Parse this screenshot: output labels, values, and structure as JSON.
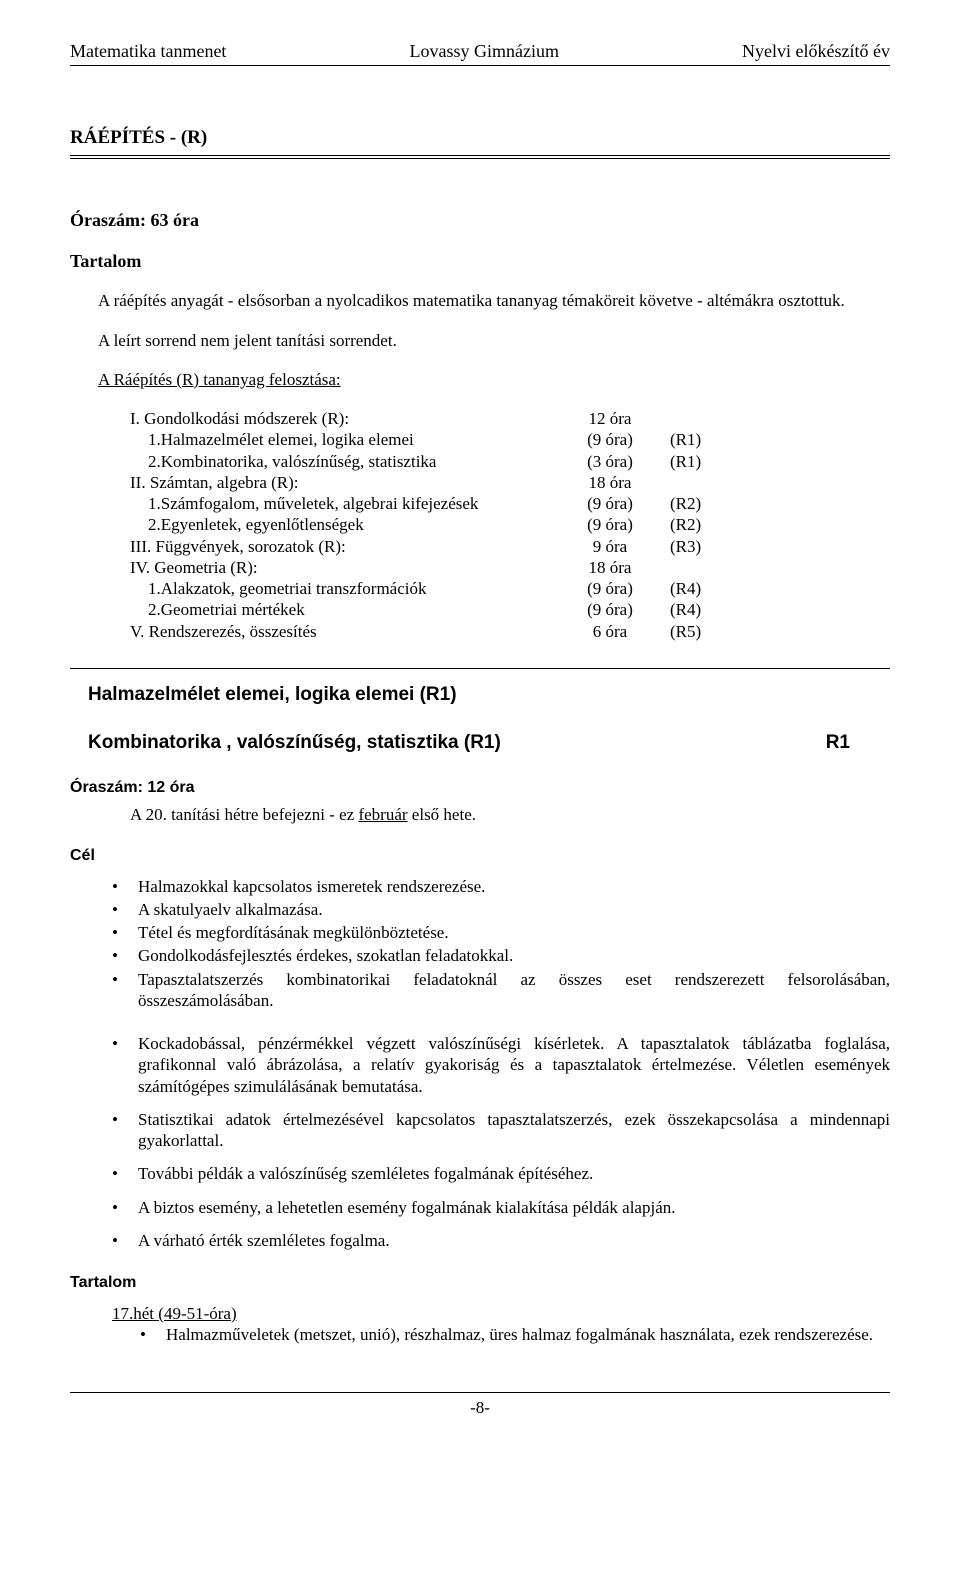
{
  "header": {
    "left": "Matematika tanmenet",
    "center": "Lovassy Gimnázium",
    "right": "Nyelvi előkészítő év"
  },
  "section": {
    "title": "RÁÉPÍTÉS  -  (R)",
    "oraszam": "Óraszám:  63 óra",
    "tartalom_label": "Tartalom",
    "intro": "A ráépítés   anyagát - elsősorban a nyolcadikos matematika tananyag témaköreit követve - altémákra osztottuk.",
    "intro2": "A leírt sorrend nem jelent tanítási sorrendet.",
    "felosztas": "A    Ráépítés   (R)  tananyag felosztása:"
  },
  "outline": [
    {
      "label": "I. Gondolkodási módszerek  (R):",
      "hours": "12 óra",
      "ref": "",
      "sub": false
    },
    {
      "label": "1.Halmazelmélet elemei, logika elemei",
      "hours": "(9 óra)",
      "ref": "(R1)",
      "sub": true
    },
    {
      "label": "2.Kombinatorika, valószínűség, statisztika",
      "hours": "(3 óra)",
      "ref": "(R1)",
      "sub": true
    },
    {
      "label": "II. Számtan, algebra  (R):",
      "hours": "18 óra",
      "ref": "",
      "sub": false
    },
    {
      "label": "1.Számfogalom, műveletek, algebrai kifejezések",
      "hours": "(9 óra)",
      "ref": "(R2)",
      "sub": true
    },
    {
      "label": "2.Egyenletek, egyenlőtlenségek",
      "hours": "(9 óra)",
      "ref": "(R2)",
      "sub": true
    },
    {
      "label": "III. Függvények, sorozatok  (R):",
      "hours": "9 óra",
      "ref": "(R3)",
      "sub": false
    },
    {
      "label": "IV. Geometria  (R):",
      "hours": "18 óra",
      "ref": "",
      "sub": false
    },
    {
      "label": "1.Alakzatok, geometriai transzformációk",
      "hours": "(9 óra)",
      "ref": "(R4)",
      "sub": true
    },
    {
      "label": "2.Geometriai mértékek",
      "hours": "(9 óra)",
      "ref": "(R4)",
      "sub": true
    },
    {
      "label": "V. Rendszerezés, összesítés",
      "hours": "6 óra",
      "ref": "(R5)",
      "sub": false
    }
  ],
  "topic1": "Halmazelmélet elemei, logika elemei (R1)",
  "topic2": {
    "label": "Kombinatorika , valószínűség, statisztika  (R1)",
    "ref": "R1"
  },
  "oraszam2": "Óraszám: 12 óra",
  "schedule": {
    "prefix": "A  20. tanítási hétre befejezni - ez  ",
    "u": "február",
    "suffix": " első hete."
  },
  "cel_label": "Cél",
  "cel_items_a": [
    "Halmazokkal kapcsolatos ismeretek rendszerezése.",
    "A skatulyaelv alkalmazása.",
    "Tétel és megfordításának megkülönböztetése.",
    "Gondolkodásfejlesztés érdekes, szokatlan feladatokkal.",
    "Tapasztalatszerzés kombinatorikai feladatoknál az összes eset rendszerezett felsorolásában, összeszámolásában."
  ],
  "cel_items_b": [
    "Kockadobással, pénzérmékkel végzett valószínűségi kísérletek. A tapasztalatok táblázatba foglalása, grafikonnal való ábrázolása, a relatív gyakoriság és a tapasztalatok értelmezése. Véletlen események számítógépes szimulálásának bemutatása.",
    "Statisztikai adatok értelmezésével kapcsolatos tapasztalatszerzés, ezek összekapcsolása a mindennapi gyakorlattal.",
    "További példák a valószínűség szemléletes fogalmának építéséhez.",
    "A biztos esemény, a lehetetlen esemény fogalmának kialakítása példák alapján.",
    "A várható érték szemléletes fogalma."
  ],
  "tartalom2_label": "Tartalom",
  "het": {
    "u": "17.hét",
    "rest": " (49-51-óra)"
  },
  "tartalom2_item": "Halmazműveletek (metszet, unió), részhalmaz, üres halmaz fogalmának használata, ezek rendszerezése.",
  "footer": "-8-"
}
